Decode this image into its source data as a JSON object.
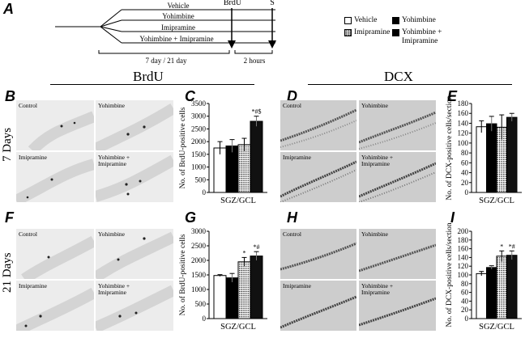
{
  "panel_letters": {
    "A": "A",
    "B": "B",
    "C": "C",
    "D": "D",
    "E": "E",
    "F": "F",
    "G": "G",
    "H": "H",
    "I": "I"
  },
  "timeline": {
    "treatments": [
      "Vehicle",
      "Yohimbine",
      "Imipramine",
      "Yohimbine + Imipramine"
    ],
    "brdu_label": "BrdU",
    "s_label": "S",
    "duration_label": "7 day / 21 day",
    "interval_label": "2 hours"
  },
  "legend": {
    "vehicle": "Vehicle",
    "yohimbine": "Yohimbine",
    "imipramine": "Imipramine",
    "combo_line1": "Yohimbine +",
    "combo_line2": "Imipramine"
  },
  "section_titles": {
    "brdu": "BrdU",
    "dcx": "DCX"
  },
  "day_labels": {
    "d7": "7 Days",
    "d21": "21 Days"
  },
  "micro_labels": {
    "control": "Control",
    "yohimbine": "Yohimbine",
    "imipramine": "Imipramine",
    "combo_line1": "Yohimbine +",
    "combo_line2": "Imipramine"
  },
  "colors": {
    "vehicle": "#ffffff",
    "yohimbine": "#000000",
    "imipramine": "dotted",
    "combo": "#111111",
    "micro_bg": "#e9e9e9",
    "dcx_bg": "#c9c9c9"
  },
  "chart_data": [
    {
      "panel": "C",
      "type": "bar",
      "categories": [
        "SGZ/GCL"
      ],
      "series": [
        {
          "name": "Vehicle",
          "values": [
            1750
          ],
          "error": [
            250
          ]
        },
        {
          "name": "Yohimbine",
          "values": [
            1830
          ],
          "error": [
            250
          ]
        },
        {
          "name": "Imipramine",
          "values": [
            1880
          ],
          "error": [
            250
          ]
        },
        {
          "name": "Yohimbine + Imipramine",
          "values": [
            2800
          ],
          "error": [
            200
          ]
        }
      ],
      "annotations": [
        "",
        "",
        "",
        "*#$"
      ],
      "ylabel": "No. of BrdU-positive cells",
      "xlabel": "SGZ/GCL",
      "ylim": [
        0,
        3500
      ],
      "yticks": [
        "0",
        "500",
        "1000",
        "1500",
        "2000",
        "2500",
        "3000",
        "3500"
      ]
    },
    {
      "panel": "E",
      "type": "bar",
      "categories": [
        "SGZ/GCL"
      ],
      "series": [
        {
          "name": "Vehicle",
          "values": [
            133
          ],
          "error": [
            12
          ]
        },
        {
          "name": "Yohimbine",
          "values": [
            139
          ],
          "error": [
            15
          ]
        },
        {
          "name": "Imipramine",
          "values": [
            132
          ],
          "error": [
            25
          ]
        },
        {
          "name": "Yohimbine + Imipramine",
          "values": [
            152
          ],
          "error": [
            8
          ]
        }
      ],
      "annotations": [
        "",
        "",
        "",
        ""
      ],
      "ylabel": "No. of DCX-positive cells/section",
      "xlabel": "SGZ/GCL",
      "ylim": [
        0,
        180
      ],
      "yticks": [
        "0",
        "20",
        "40",
        "60",
        "80",
        "100",
        "120",
        "140",
        "160",
        "180"
      ]
    },
    {
      "panel": "G",
      "type": "bar",
      "categories": [
        "SGZ/GCL"
      ],
      "series": [
        {
          "name": "Vehicle",
          "values": [
            1480
          ],
          "error": [
            30
          ]
        },
        {
          "name": "Yohimbine",
          "values": [
            1400
          ],
          "error": [
            150
          ]
        },
        {
          "name": "Imipramine",
          "values": [
            1950
          ],
          "error": [
            150
          ]
        },
        {
          "name": "Yohimbine + Imipramine",
          "values": [
            2150
          ],
          "error": [
            150
          ]
        }
      ],
      "annotations": [
        "",
        "",
        "*",
        "*#"
      ],
      "ylabel": "No. of BrdU-positive cells",
      "xlabel": "SGZ/GCL",
      "ylim": [
        0,
        3000
      ],
      "yticks": [
        "0",
        "500",
        "1000",
        "1500",
        "2000",
        "2500",
        "3000"
      ]
    },
    {
      "panel": "I",
      "type": "bar",
      "categories": [
        "SGZ/GCL"
      ],
      "series": [
        {
          "name": "Vehicle",
          "values": [
            103
          ],
          "error": [
            5
          ]
        },
        {
          "name": "Yohimbine",
          "values": [
            117
          ],
          "error": [
            4
          ]
        },
        {
          "name": "Imipramine",
          "values": [
            143
          ],
          "error": [
            12
          ]
        },
        {
          "name": "Yohimbine + Imipramine",
          "values": [
            145
          ],
          "error": [
            10
          ]
        }
      ],
      "annotations": [
        "",
        "",
        "*",
        "*#"
      ],
      "ylabel": "No. of DCX-positive cells/section",
      "xlabel": "SGZ/GCL",
      "ylim": [
        0,
        200
      ],
      "yticks": [
        "0",
        "20",
        "40",
        "60",
        "80",
        "100",
        "120",
        "140",
        "160",
        "180",
        "200"
      ]
    }
  ]
}
